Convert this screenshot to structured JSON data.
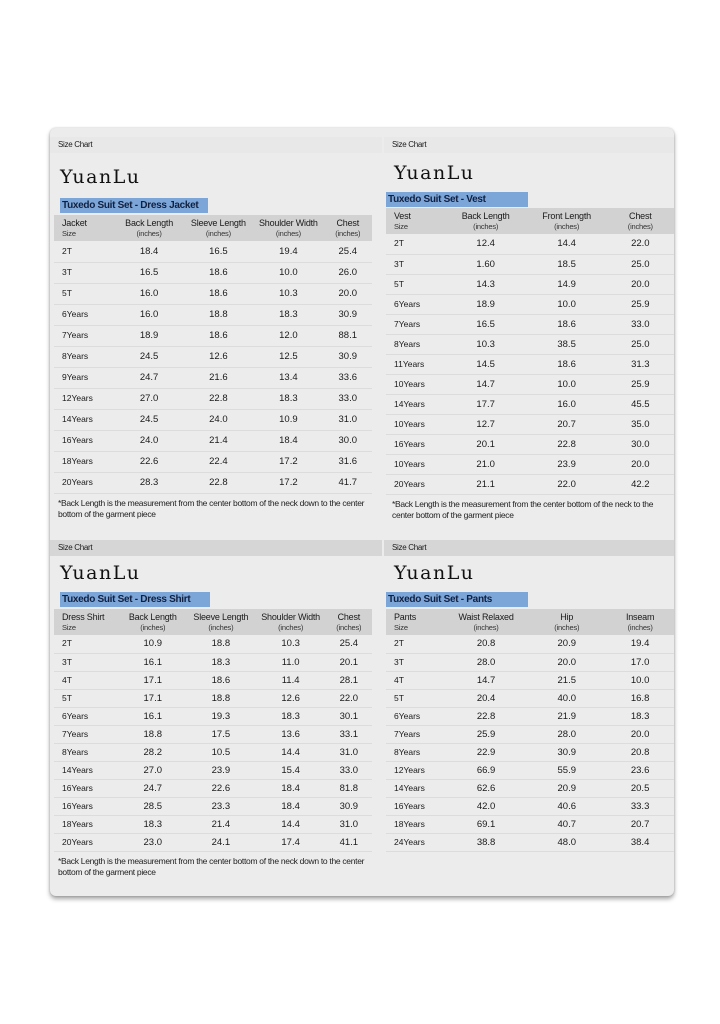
{
  "panels": [
    {
      "id": "jacket",
      "size_chart_label": "Size Chart",
      "brand": "YuanLu",
      "product_label": "Tuxedo Suit Set - Dress Jacket",
      "headers": [
        {
          "title": "Jacket",
          "unit": "Size"
        },
        {
          "title": "Back Length",
          "unit": "(inches)"
        },
        {
          "title": "Sleeve Length",
          "unit": "(inches)"
        },
        {
          "title": "Shoulder Width",
          "unit": "(inches)"
        },
        {
          "title": "Chest",
          "unit": "(inches)"
        }
      ],
      "rows": [
        [
          "2T",
          "18.4",
          "16.5",
          "19.4",
          "25.4"
        ],
        [
          "3T",
          "16.5",
          "18.6",
          "10.0",
          "26.0"
        ],
        [
          "5T",
          "16.0",
          "18.6",
          "10.3",
          "20.0"
        ],
        [
          "6Years",
          "16.0",
          "18.8",
          "18.3",
          "30.9"
        ],
        [
          "7Years",
          "18.9",
          "18.6",
          "12.0",
          "88.1"
        ],
        [
          "8Years",
          "24.5",
          "12.6",
          "12.5",
          "30.9"
        ],
        [
          "9Years",
          "24.7",
          "21.6",
          "13.4",
          "33.6"
        ],
        [
          "12Years",
          "27.0",
          "22.8",
          "18.3",
          "33.0"
        ],
        [
          "14Years",
          "24.5",
          "24.0",
          "10.9",
          "31.0"
        ],
        [
          "16Years",
          "24.0",
          "21.4",
          "18.4",
          "30.0"
        ],
        [
          "18Years",
          "22.6",
          "22.4",
          "17.2",
          "31.6"
        ],
        [
          "20Years",
          "28.3",
          "22.8",
          "17.2",
          "41.7"
        ]
      ],
      "note": "*Back Length is the measurement from the center bottom of the neck down to the center bottom of the garment piece"
    },
    {
      "id": "vest",
      "size_chart_label": "Size Chart",
      "brand": "YuanLu",
      "product_label": "Tuxedo Suit Set - Vest",
      "headers": [
        {
          "title": "Vest",
          "unit": "Size"
        },
        {
          "title": "Back Length",
          "unit": "(inches)"
        },
        {
          "title": "Front Length",
          "unit": "(inches)"
        },
        {
          "title": "Chest",
          "unit": "(inches)"
        }
      ],
      "rows": [
        [
          "2T",
          "12.4",
          "14.4",
          "22.0"
        ],
        [
          "3T",
          "1.60",
          "18.5",
          "25.0"
        ],
        [
          "5T",
          "14.3",
          "14.9",
          "20.0"
        ],
        [
          "6Years",
          "18.9",
          "10.0",
          "25.9"
        ],
        [
          "7Years",
          "16.5",
          "18.6",
          "33.0"
        ],
        [
          "8Years",
          "10.3",
          "38.5",
          "25.0"
        ],
        [
          "11Years",
          "14.5",
          "18.6",
          "31.3"
        ],
        [
          "10Years",
          "14.7",
          "10.0",
          "25.9"
        ],
        [
          "14Years",
          "17.7",
          "16.0",
          "45.5"
        ],
        [
          "10Years",
          "12.7",
          "20.7",
          "35.0"
        ],
        [
          "16Years",
          "20.1",
          "22.8",
          "30.0"
        ],
        [
          "10Years",
          "21.0",
          "23.9",
          "20.0"
        ],
        [
          "20Years",
          "21.1",
          "22.0",
          "42.2"
        ]
      ],
      "note": "*Back Length is the measurement from the center bottom of the neck to the center bottom of the garment piece"
    },
    {
      "id": "shirt",
      "size_chart_label": "Size Chart",
      "brand": "YuanLu",
      "product_label": "Tuxedo Suit Set - Dress Shirt",
      "headers": [
        {
          "title": "Dress Shirt",
          "unit": "Size"
        },
        {
          "title": "Back Length",
          "unit": "(inches)"
        },
        {
          "title": "Sleeve Length",
          "unit": "(inches)"
        },
        {
          "title": "Shoulder Width",
          "unit": "(inches)"
        },
        {
          "title": "Chest",
          "unit": "(inches)"
        }
      ],
      "rows": [
        [
          "2T",
          "10.9",
          "18.8",
          "10.3",
          "25.4"
        ],
        [
          "3T",
          "16.1",
          "18.3",
          "11.0",
          "20.1"
        ],
        [
          "4T",
          "17.1",
          "18.6",
          "11.4",
          "28.1"
        ],
        [
          "5T",
          "17.1",
          "18.8",
          "12.6",
          "22.0"
        ],
        [
          "6Years",
          "16.1",
          "19.3",
          "18.3",
          "30.1"
        ],
        [
          "7Years",
          "18.8",
          "17.5",
          "13.6",
          "33.1"
        ],
        [
          "8Years",
          "28.2",
          "10.5",
          "14.4",
          "31.0"
        ],
        [
          "14Years",
          "27.0",
          "23.9",
          "15.4",
          "33.0"
        ],
        [
          "16Years",
          "24.7",
          "22.6",
          "18.4",
          "81.8"
        ],
        [
          "16Years",
          "28.5",
          "23.3",
          "18.4",
          "30.9"
        ],
        [
          "18Years",
          "18.3",
          "21.4",
          "14.4",
          "31.0"
        ],
        [
          "20Years",
          "23.0",
          "24.1",
          "17.4",
          "41.1"
        ]
      ],
      "note": "*Back Length is the measurement from the center bottom of the neck down to the center bottom of the garment piece"
    },
    {
      "id": "pants",
      "size_chart_label": "Size Chart",
      "brand": "YuanLu",
      "product_label": "Tuxedo Suit Set - Pants",
      "headers": [
        {
          "title": "Pants",
          "unit": "Size"
        },
        {
          "title": "Waist Relaxed",
          "unit": "(inches)"
        },
        {
          "title": "Hip",
          "unit": "(inches)"
        },
        {
          "title": "Inseam",
          "unit": "(inches)"
        }
      ],
      "rows": [
        [
          "2T",
          "20.8",
          "20.9",
          "19.4"
        ],
        [
          "3T",
          "28.0",
          "20.0",
          "17.0"
        ],
        [
          "4T",
          "14.7",
          "21.5",
          "10.0"
        ],
        [
          "5T",
          "20.4",
          "40.0",
          "16.8"
        ],
        [
          "6Years",
          "22.8",
          "21.9",
          "18.3"
        ],
        [
          "7Years",
          "25.9",
          "28.0",
          "20.0"
        ],
        [
          "8Years",
          "22.9",
          "30.9",
          "20.8"
        ],
        [
          "12Years",
          "66.9",
          "55.9",
          "23.6"
        ],
        [
          "14Years",
          "62.6",
          "20.9",
          "20.5"
        ],
        [
          "16Years",
          "42.0",
          "40.6",
          "33.3"
        ],
        [
          "18Years",
          "69.1",
          "40.7",
          "20.7"
        ],
        [
          "24Years",
          "38.8",
          "48.0",
          "38.4"
        ]
      ],
      "note": ""
    }
  ]
}
